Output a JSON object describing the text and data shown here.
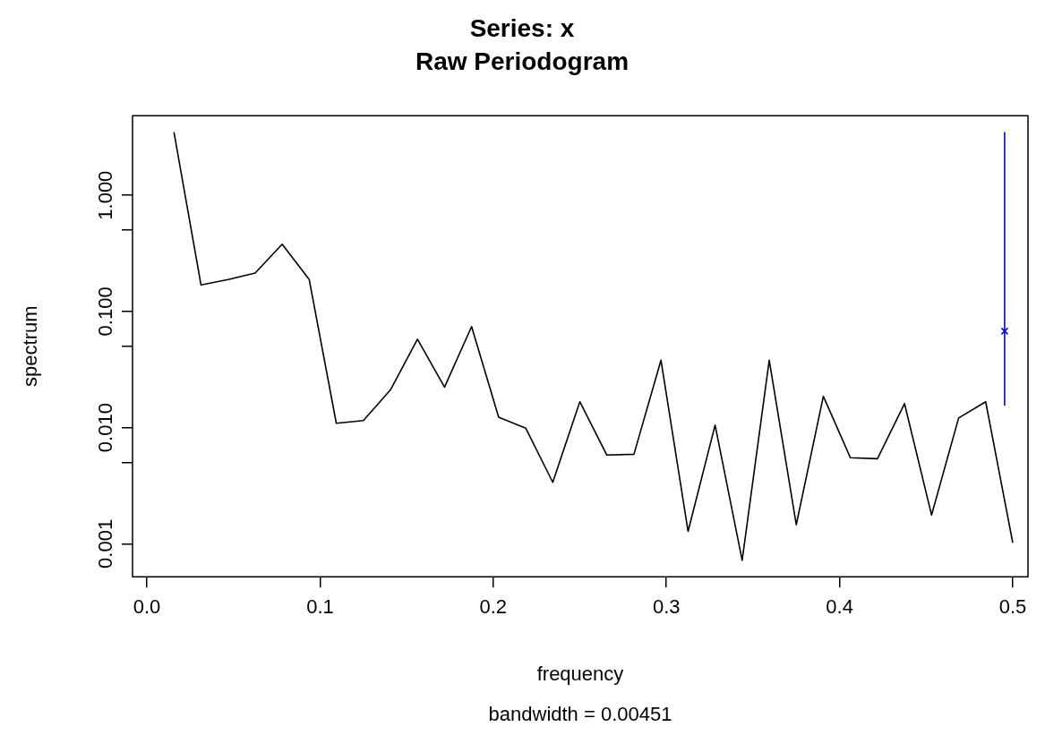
{
  "chart_data": {
    "type": "line",
    "title": "Series: x",
    "subtitle": "Raw Periodogram",
    "xlabel": "frequency",
    "ylabel": "spectrum",
    "annotations": [
      "bandwidth = 0.00451"
    ],
    "log": "y",
    "grid": false,
    "legend": false,
    "marker": "none",
    "line_style": "solid",
    "xlim": [
      -0.0083,
      0.5088
    ],
    "ylim": [
      0.00052,
      4.85
    ],
    "xticks": [
      {
        "value": 0,
        "label": "0.0"
      },
      {
        "value": 0.1,
        "label": "0.1"
      },
      {
        "value": 0.2,
        "label": "0.2"
      },
      {
        "value": 0.3,
        "label": "0.3"
      },
      {
        "value": 0.4,
        "label": "0.4"
      },
      {
        "value": 0.5,
        "label": "0.5"
      }
    ],
    "yticks": [
      {
        "value": 0.001,
        "label": "0.001"
      },
      {
        "value": 0.005,
        "label": null
      },
      {
        "value": 0.01,
        "label": "0.010"
      },
      {
        "value": 0.05,
        "label": null
      },
      {
        "value": 0.1,
        "label": "0.100"
      },
      {
        "value": 0.5,
        "label": null
      },
      {
        "value": 1,
        "label": "1.000"
      }
    ],
    "series": [
      {
        "type": "line",
        "color": "#000000",
        "x": [
          0.015625,
          0.03125,
          0.046875,
          0.0625,
          0.078125,
          0.09375,
          0.109375,
          0.125,
          0.140625,
          0.15625,
          0.171875,
          0.1875,
          0.203125,
          0.21875,
          0.234375,
          0.25,
          0.265625,
          0.28125,
          0.296875,
          0.3125,
          0.328125,
          0.34375,
          0.359375,
          0.375,
          0.390625,
          0.40625,
          0.421875,
          0.4375,
          0.453125,
          0.46875,
          0.484375,
          0.5
        ],
        "values": [
          3.5,
          0.169,
          0.188,
          0.214,
          0.38,
          0.188,
          0.0109,
          0.0115,
          0.0211,
          0.0577,
          0.0223,
          0.0741,
          0.0123,
          0.0099,
          0.00338,
          0.0167,
          0.0058,
          0.0059,
          0.0381,
          0.00128,
          0.0105,
          0.00072,
          0.0381,
          0.00146,
          0.0186,
          0.0055,
          0.0054,
          0.0161,
          0.00177,
          0.0121,
          0.0167,
          0.00102
        ]
      },
      {
        "type": "scatter",
        "color": "#0000ff",
        "marker": "cross",
        "x": [
          0.4953
        ],
        "values": [
          0.0677
        ],
        "errors": [
          [
            0.0155,
            3.5
          ]
        ]
      }
    ]
  }
}
